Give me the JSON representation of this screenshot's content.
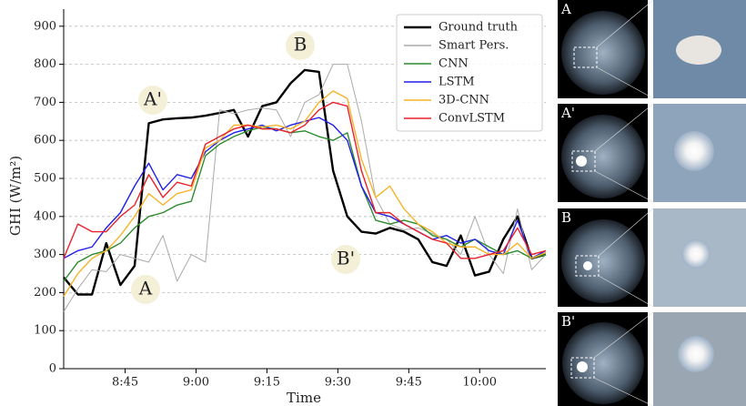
{
  "chart_data": {
    "type": "line",
    "x_label": "Time",
    "y_label": "GHI (W/m²)",
    "x": [
      512,
      515,
      518,
      521,
      524,
      527,
      530,
      533,
      536,
      539,
      542,
      545,
      548,
      551,
      554,
      557,
      560,
      563,
      566,
      569,
      572,
      575,
      578,
      581,
      584,
      587,
      590,
      593,
      596,
      599,
      602,
      605,
      608,
      611,
      614
    ],
    "series": [
      {
        "name": "Ground truth",
        "color": "#000000",
        "values": [
          240,
          195,
          195,
          330,
          220,
          270,
          645,
          655,
          658,
          660,
          665,
          672,
          680,
          610,
          690,
          700,
          750,
          785,
          780,
          520,
          400,
          360,
          355,
          370,
          360,
          340,
          280,
          270,
          350,
          245,
          255,
          340,
          400,
          290,
          300
        ]
      },
      {
        "name": "Smart Pers.",
        "color": "#aaaaaa",
        "values": [
          150,
          210,
          260,
          255,
          300,
          290,
          280,
          350,
          230,
          300,
          280,
          680,
          670,
          680,
          685,
          680,
          610,
          700,
          720,
          800,
          800,
          650,
          450,
          380,
          365,
          370,
          355,
          340,
          300,
          400,
          300,
          250,
          420,
          260,
          300
        ]
      },
      {
        "name": "CNN",
        "color": "#2e8b2e",
        "values": [
          230,
          280,
          300,
          310,
          330,
          370,
          400,
          410,
          430,
          440,
          560,
          590,
          610,
          625,
          635,
          630,
          620,
          625,
          610,
          600,
          620,
          480,
          390,
          380,
          390,
          380,
          350,
          340,
          320,
          340,
          320,
          300,
          310,
          290,
          300
        ]
      },
      {
        "name": "LSTM",
        "color": "#1f1fe6",
        "values": [
          290,
          310,
          320,
          370,
          410,
          480,
          540,
          470,
          510,
          500,
          570,
          600,
          620,
          630,
          640,
          625,
          640,
          650,
          660,
          640,
          600,
          480,
          410,
          400,
          380,
          360,
          340,
          350,
          330,
          340,
          310,
          300,
          390,
          290,
          310
        ]
      },
      {
        "name": "3D-CNN",
        "color": "#f5b42a",
        "values": [
          190,
          250,
          290,
          310,
          350,
          400,
          460,
          430,
          460,
          470,
          580,
          600,
          640,
          640,
          635,
          640,
          630,
          650,
          700,
          730,
          710,
          550,
          450,
          480,
          420,
          380,
          360,
          330,
          320,
          320,
          300,
          300,
          330,
          290,
          305
        ]
      },
      {
        "name": "ConvLSTM",
        "color": "#e8212b",
        "values": [
          290,
          380,
          360,
          360,
          400,
          430,
          510,
          450,
          490,
          480,
          590,
          610,
          630,
          640,
          630,
          630,
          620,
          640,
          680,
          700,
          690,
          520,
          410,
          410,
          380,
          360,
          340,
          330,
          290,
          290,
          300,
          310,
          370,
          300,
          310
        ]
      }
    ],
    "xlim": [
      512,
      614
    ],
    "xticks": [
      {
        "value": 525,
        "label": "8:45"
      },
      {
        "value": 540,
        "label": "9:00"
      },
      {
        "value": 555,
        "label": "9:15"
      },
      {
        "value": 570,
        "label": "9:30"
      },
      {
        "value": 585,
        "label": "9:45"
      },
      {
        "value": 600,
        "label": "10:00"
      }
    ],
    "ylim": [
      0,
      945
    ],
    "yticks": [
      0,
      100,
      200,
      300,
      400,
      500,
      600,
      700,
      800,
      900
    ],
    "grid": true,
    "legend": "upper right",
    "annotations": [
      "A",
      "A'",
      "B",
      "B'"
    ],
    "panel_labels": [
      "A",
      "A'",
      "B",
      "B'"
    ]
  }
}
